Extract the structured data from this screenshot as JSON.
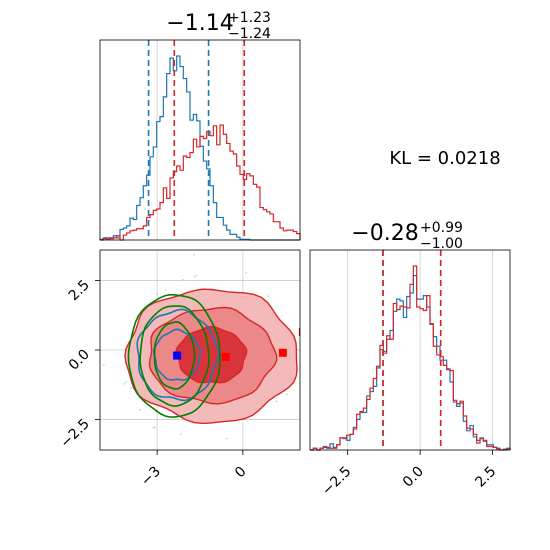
{
  "colors": {
    "blue": "#1f77b4",
    "red": "#d62728",
    "green": "#008000",
    "grid": "#cccccc",
    "red_fill_light": "#f4b9b9",
    "red_fill_mid": "#ec8888",
    "red_fill_dark": "#d9343b",
    "blue_marker": "#0000ff",
    "red_marker": "#ff0000"
  },
  "kl_text": "KL = 0.0218",
  "chart_data": [
    {
      "type": "histogram",
      "panel": "marginal-x",
      "title_value": "−1.14",
      "title_plus": "+1.23",
      "title_minus": "−1.24",
      "xlim": [
        -5.0,
        2.0
      ],
      "grid": true,
      "series": [
        {
          "color": "blue",
          "center": -2.3,
          "spread": 0.75,
          "quantile_lines": [
            -3.3,
            -1.2
          ]
        },
        {
          "color": "red",
          "center": -1.1,
          "spread": 1.2,
          "quantile_lines": [
            -2.4,
            0.05
          ]
        }
      ]
    },
    {
      "type": "contour",
      "panel": "joint",
      "xlim": [
        -5.0,
        2.0
      ],
      "ylim": [
        -3.6,
        3.6
      ],
      "xticks": [
        -3,
        0
      ],
      "xtick_labels": [
        "−3",
        "0"
      ],
      "yticks": [
        2.5,
        0.0,
        -2.5
      ],
      "ytick_labels": [
        "2.5",
        "0.0",
        "−2.5"
      ],
      "grid": true,
      "markers": [
        {
          "x": -2.3,
          "y": -0.2,
          "color": "blue_marker"
        },
        {
          "x": -0.6,
          "y": -0.25,
          "color": "red_marker"
        },
        {
          "x": 1.4,
          "y": -0.1,
          "color": "red_marker"
        },
        {
          "x": 2.1,
          "y": 0.65,
          "color": "red_marker"
        }
      ],
      "series": [
        {
          "color": "red",
          "center": [
            -1.1,
            -0.2
          ],
          "levels": [
            [
              1.2,
              1.0
            ],
            [
              2.2,
              1.7
            ],
            [
              3.0,
              2.4
            ]
          ]
        },
        {
          "color": "blue",
          "center": [
            -2.3,
            -0.2
          ],
          "levels": [
            [
              0.8,
              0.9
            ],
            [
              1.4,
              1.6
            ]
          ]
        },
        {
          "color": "green",
          "center": [
            -2.4,
            -0.2
          ],
          "levels": [
            [
              0.7,
              1.2
            ],
            [
              1.2,
              1.8
            ],
            [
              1.6,
              2.2
            ]
          ]
        }
      ]
    },
    {
      "type": "histogram",
      "panel": "marginal-y",
      "title_value": "−0.28",
      "title_plus": "+0.99",
      "title_minus": "−1.00",
      "xlim": [
        -3.8,
        3.1
      ],
      "xticks": [
        -2.5,
        0.0,
        2.5
      ],
      "xtick_labels": [
        "−2.5",
        "0.0",
        "2.5"
      ],
      "grid": true,
      "series": [
        {
          "color": "blue",
          "center": -0.28,
          "spread": 1.0,
          "quantile_lines": [
            -1.28,
            0.71
          ]
        },
        {
          "color": "red",
          "center": -0.28,
          "spread": 1.0,
          "quantile_lines": [
            -1.28,
            0.71
          ]
        }
      ]
    }
  ]
}
